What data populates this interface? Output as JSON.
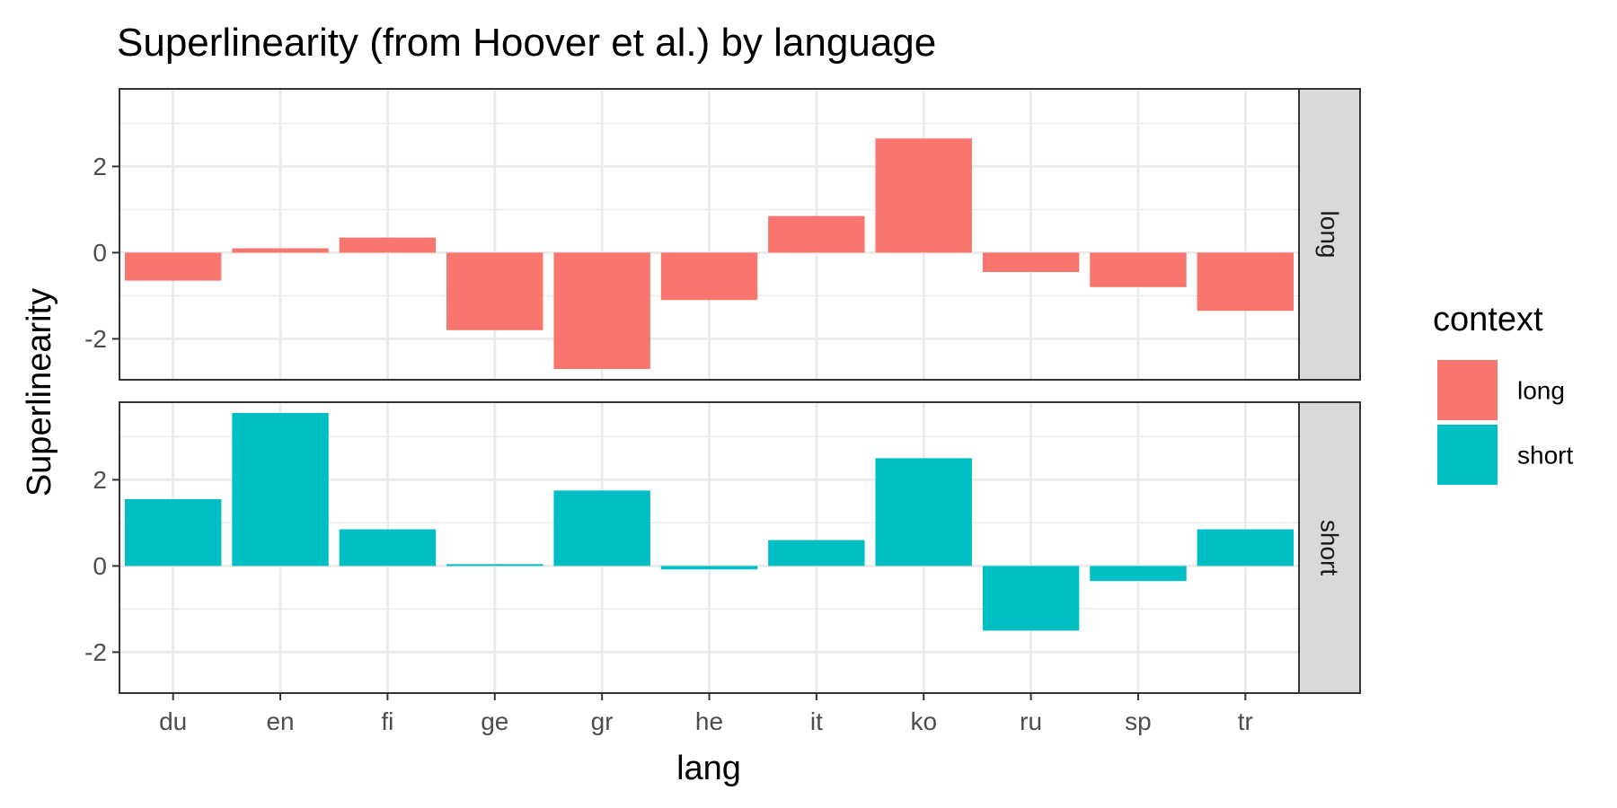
{
  "chart_data": {
    "type": "bar",
    "title": "Superlinearity (from Hoover et al.) by language",
    "xlabel": "lang",
    "ylabel": "Superlinearity",
    "categories": [
      "du",
      "en",
      "fi",
      "ge",
      "gr",
      "he",
      "it",
      "ko",
      "ru",
      "sp",
      "tr"
    ],
    "facets": [
      {
        "strip": "long",
        "series": "long",
        "values": [
          -0.65,
          0.1,
          0.35,
          -1.8,
          -2.7,
          -1.1,
          0.85,
          2.65,
          -0.45,
          -0.8,
          -1.35
        ],
        "yticks": [
          -2,
          0,
          2
        ],
        "ylim": [
          -2.95,
          3.8
        ]
      },
      {
        "strip": "short",
        "series": "short",
        "values": [
          1.55,
          3.55,
          0.85,
          0.02,
          1.75,
          -0.08,
          0.6,
          2.5,
          -1.5,
          -0.35,
          0.85
        ],
        "yticks": [
          -2,
          0,
          2
        ],
        "ylim": [
          -2.95,
          3.8
        ]
      }
    ],
    "legend": {
      "title": "context",
      "placement": "right",
      "entries": [
        {
          "label": "long",
          "color": "#F8766D"
        },
        {
          "label": "short",
          "color": "#00BFC4"
        }
      ]
    },
    "style": {
      "panel_background": "#ffffff",
      "panel_border": "#333333",
      "grid_color": "#ebebeb",
      "strip_fill": "#d9d9d9",
      "grid": true
    }
  }
}
